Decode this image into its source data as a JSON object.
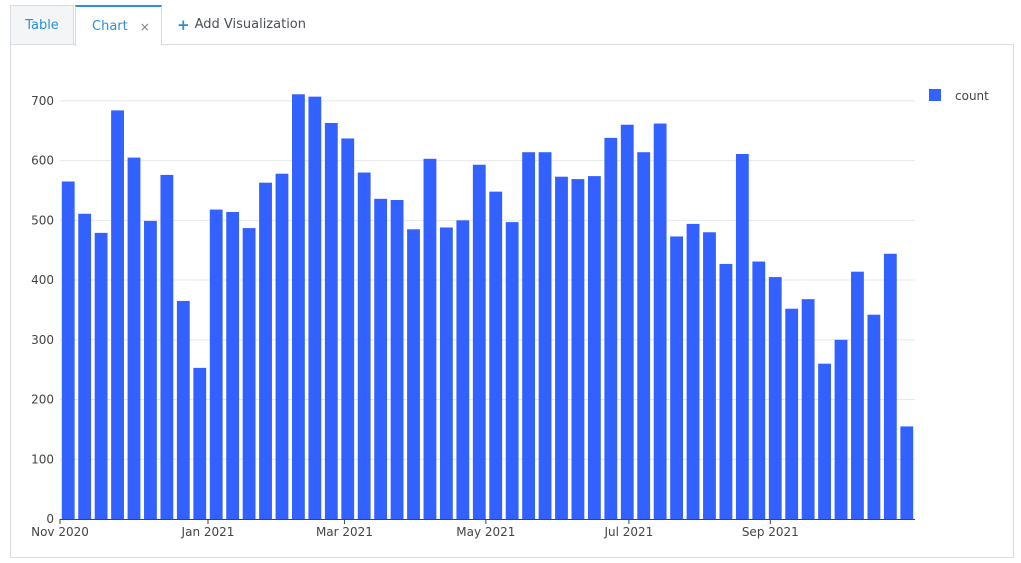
{
  "tabs": {
    "table_label": "Table",
    "chart_label": "Chart",
    "close_glyph": "×",
    "add_label": "Add Visualization",
    "add_glyph": "+"
  },
  "colors": {
    "bar": "#3361ff",
    "accent": "#2c8fd6"
  },
  "chart_data": {
    "type": "bar",
    "xlabel": "",
    "ylabel": "",
    "ylim": [
      0,
      760
    ],
    "grid": true,
    "legend": "top-right",
    "y_ticks": [
      "0",
      "100",
      "200",
      "300",
      "400",
      "500",
      "600",
      "700"
    ],
    "x_ticks": [
      {
        "label": "Nov 2020",
        "bar_index": -0.5
      },
      {
        "label": "Jan 2021",
        "bar_index": 8.5
      },
      {
        "label": "Mar 2021",
        "bar_index": 16.8
      },
      {
        "label": "May 2021",
        "bar_index": 25.4
      },
      {
        "label": "Jul 2021",
        "bar_index": 34.1
      },
      {
        "label": "Sep 2021",
        "bar_index": 42.7
      }
    ],
    "series": [
      {
        "name": "count",
        "values": [
          565,
          511,
          479,
          684,
          605,
          499,
          576,
          365,
          253,
          518,
          514,
          487,
          563,
          578,
          711,
          707,
          663,
          637,
          580,
          536,
          534,
          485,
          603,
          488,
          500,
          593,
          548,
          497,
          614,
          614,
          573,
          569,
          574,
          638,
          660,
          614,
          662,
          473,
          494,
          480,
          427,
          611,
          431,
          405,
          352,
          368,
          260,
          300,
          414,
          342,
          444,
          155
        ]
      }
    ]
  }
}
